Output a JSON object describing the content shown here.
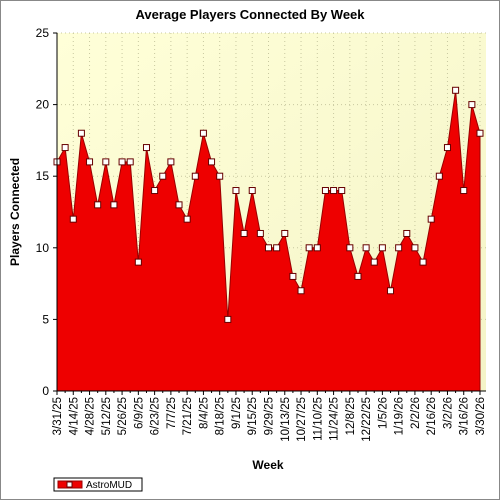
{
  "chart_data": {
    "type": "area",
    "title": "Average Players Connected By Week",
    "x_label": "Week",
    "y_label": "Players Connected",
    "categories": [
      "3/31/25",
      null,
      "4/14/25",
      null,
      "4/28/25",
      null,
      "5/12/25",
      null,
      "5/26/25",
      null,
      "6/9/25",
      null,
      "6/23/25",
      null,
      "7/7/25",
      null,
      "7/21/25",
      null,
      "8/4/25",
      null,
      "8/18/25",
      null,
      "9/1/25",
      null,
      "9/15/25",
      null,
      "9/29/25",
      null,
      "10/13/25",
      null,
      "10/27/25",
      null,
      "11/10/25",
      null,
      "11/24/25",
      null,
      "12/8/25",
      null,
      "12/22/25",
      null,
      "1/5/26",
      null,
      "1/19/26",
      null,
      "2/2/26",
      null,
      "2/16/26",
      null,
      "3/2/26",
      null,
      "3/16/26",
      null,
      "3/30/26"
    ],
    "series": [
      {
        "name": "AstroMUD",
        "color": "#ee0000",
        "values": [
          16,
          17,
          12,
          18,
          16,
          13,
          16,
          13,
          16,
          16,
          9,
          17,
          14,
          15,
          16,
          13,
          12,
          15,
          18,
          16,
          15,
          5,
          14,
          11,
          14,
          11,
          10,
          10,
          11,
          8,
          7,
          10,
          10,
          14,
          14,
          14,
          10,
          8,
          10,
          9,
          10,
          7,
          10,
          11,
          10,
          9,
          12,
          15,
          17,
          21,
          14,
          20,
          18
        ]
      }
    ],
    "ylim": [
      0,
      25
    ],
    "yticks": [
      0,
      5,
      10,
      15,
      20,
      25
    ],
    "grid": true,
    "legend": "bottom-left"
  }
}
